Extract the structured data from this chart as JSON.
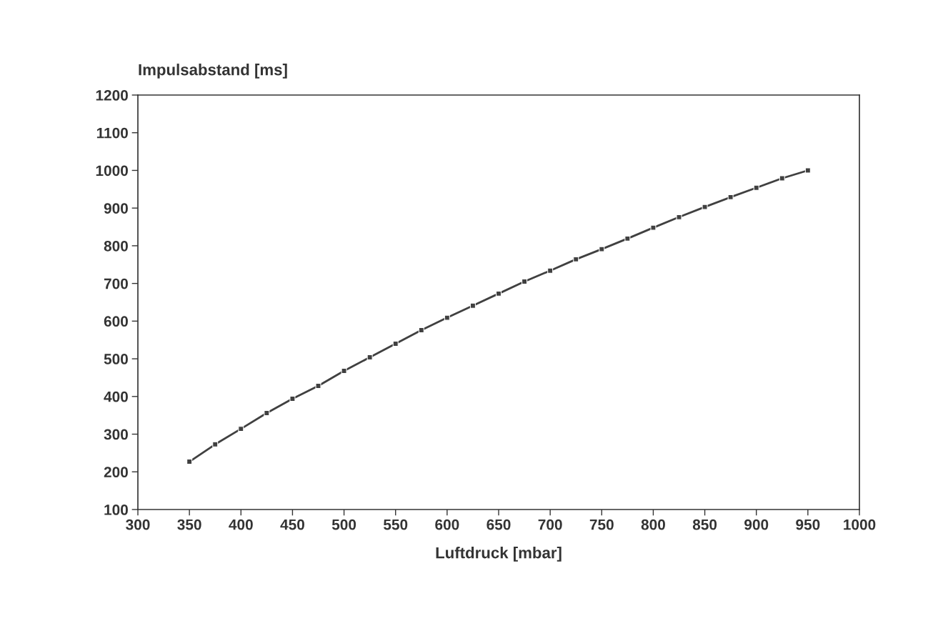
{
  "chart_data": {
    "type": "line",
    "xlabel": "Luftdruck [mbar]",
    "ylabel": "Impulsabstand [ms]",
    "x": [
      350,
      375,
      400,
      425,
      450,
      475,
      500,
      525,
      550,
      575,
      600,
      625,
      650,
      675,
      700,
      725,
      750,
      775,
      800,
      825,
      850,
      875,
      900,
      925,
      950
    ],
    "series": [
      {
        "color": "#404040",
        "values": [
          227,
          273,
          314,
          356,
          394,
          428,
          468,
          504,
          540,
          576,
          609,
          641,
          673,
          705,
          734,
          764,
          791,
          819,
          848,
          876,
          903,
          929,
          954,
          979,
          1000
        ]
      }
    ],
    "marker": "square",
    "line_style": "solid",
    "xlim": [
      300,
      1000
    ],
    "xticks": [
      300,
      350,
      400,
      450,
      500,
      550,
      600,
      650,
      700,
      750,
      800,
      850,
      900,
      950,
      1000
    ],
    "ylim": [
      100,
      1200
    ],
    "yticks": [
      100,
      200,
      300,
      400,
      500,
      600,
      700,
      800,
      900,
      1000,
      1100,
      1200
    ]
  }
}
